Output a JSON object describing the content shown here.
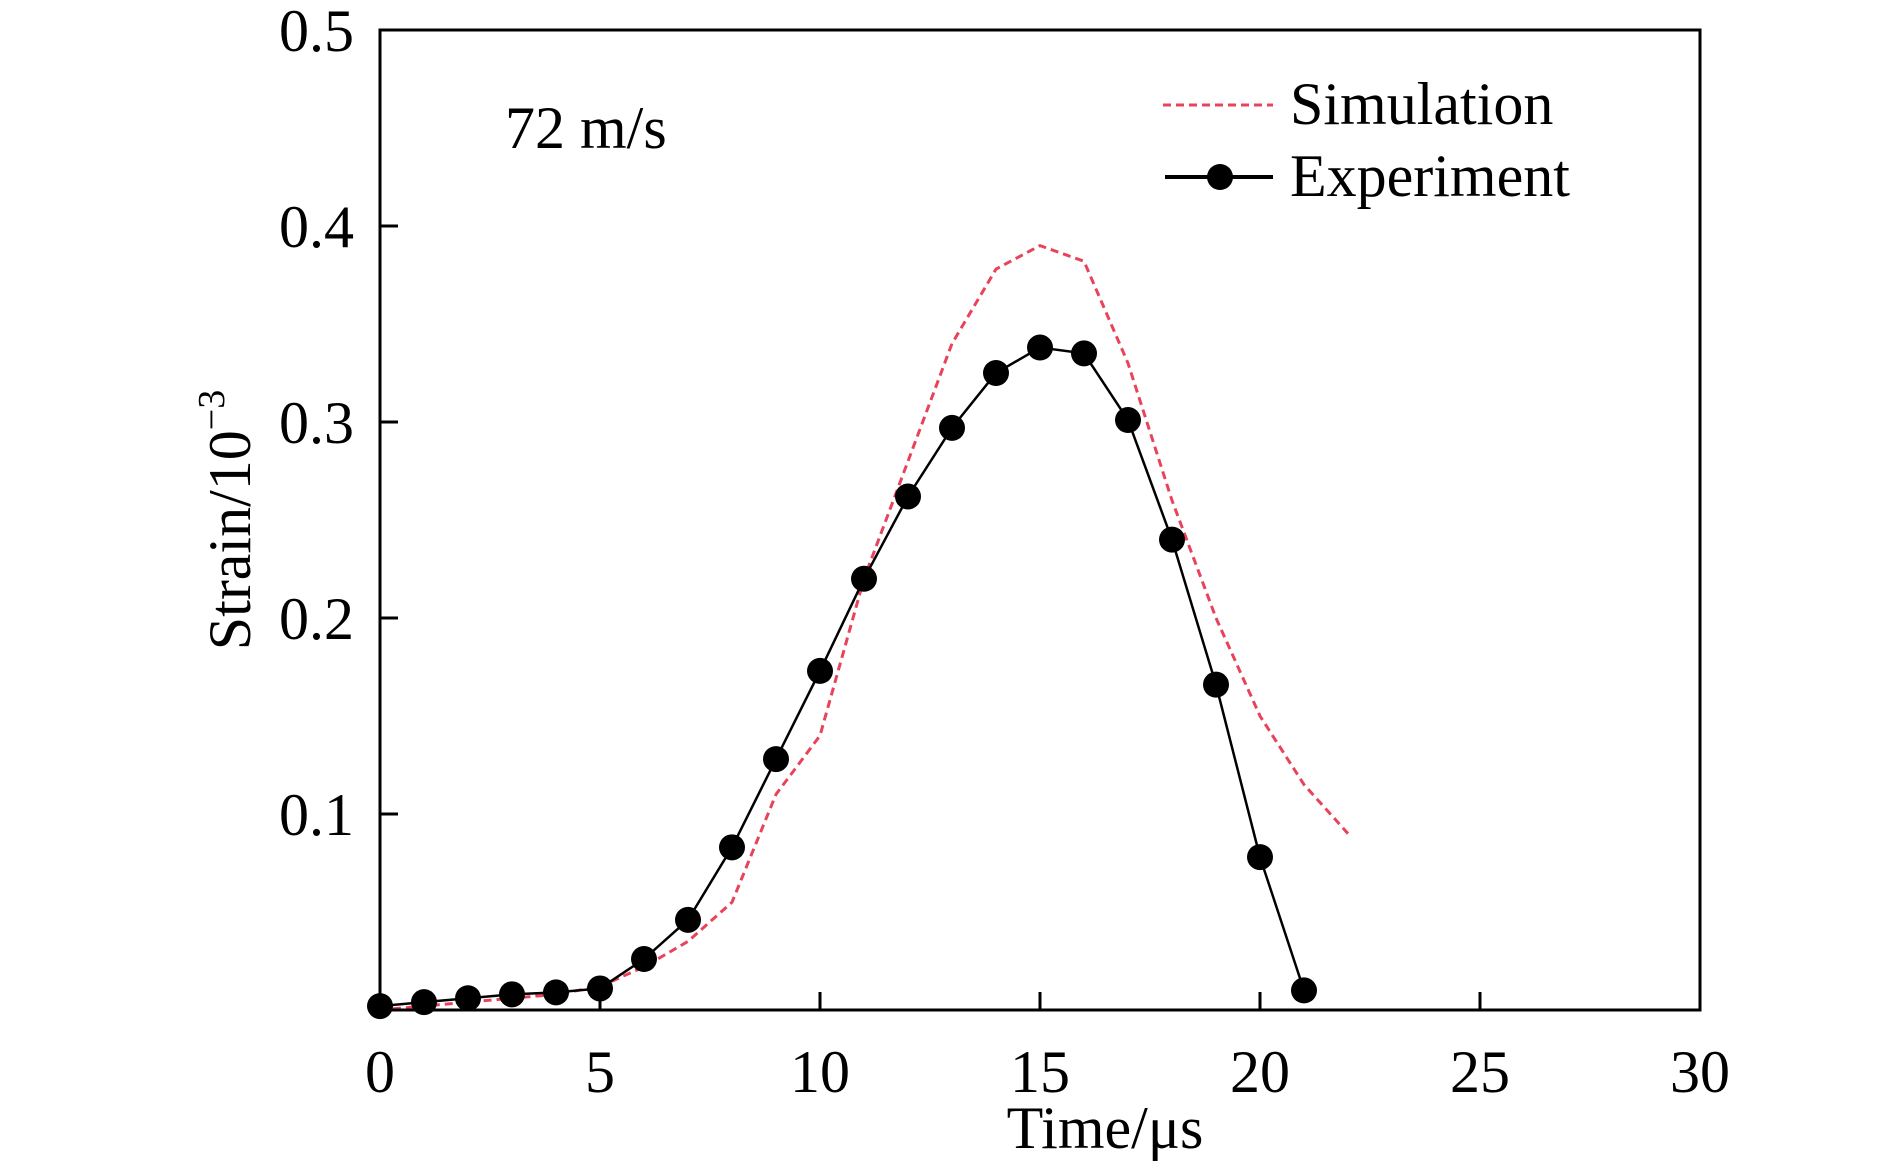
{
  "chart_data": {
    "type": "line",
    "xlabel": "Time/μs",
    "ylabel_base": "Strain/10",
    "ylabel_exp": "−3",
    "annotation": "72 m/s",
    "xlim": [
      0,
      30
    ],
    "ylim": [
      0,
      0.5
    ],
    "x_ticks": [
      0,
      5,
      10,
      15,
      20,
      25,
      30
    ],
    "y_ticks": [
      0.1,
      0.2,
      0.3,
      0.4,
      0.5
    ],
    "legend_position": "top-right",
    "grid": false,
    "series": [
      {
        "name": "Simulation",
        "style": "dashed",
        "color": "#e8435a",
        "x": [
          0,
          1,
          2,
          3,
          4,
          5,
          6,
          7,
          8,
          9,
          10,
          11,
          12,
          13,
          14,
          15,
          16,
          17,
          18,
          19,
          20,
          21,
          22
        ],
        "y": [
          0.0,
          0.002,
          0.004,
          0.006,
          0.008,
          0.012,
          0.022,
          0.035,
          0.055,
          0.11,
          0.14,
          0.22,
          0.28,
          0.34,
          0.378,
          0.39,
          0.382,
          0.33,
          0.26,
          0.2,
          0.15,
          0.115,
          0.09
        ]
      },
      {
        "name": "Experiment",
        "style": "solid-markers",
        "color": "#000000",
        "x": [
          0,
          1,
          2,
          3,
          4,
          5,
          6,
          7,
          8,
          9,
          10,
          11,
          12,
          13,
          14,
          15,
          16,
          17,
          18,
          19,
          20,
          21
        ],
        "y": [
          0.002,
          0.004,
          0.006,
          0.008,
          0.009,
          0.011,
          0.026,
          0.046,
          0.083,
          0.128,
          0.173,
          0.22,
          0.262,
          0.297,
          0.325,
          0.338,
          0.335,
          0.301,
          0.24,
          0.166,
          0.078,
          0.01
        ]
      }
    ]
  }
}
